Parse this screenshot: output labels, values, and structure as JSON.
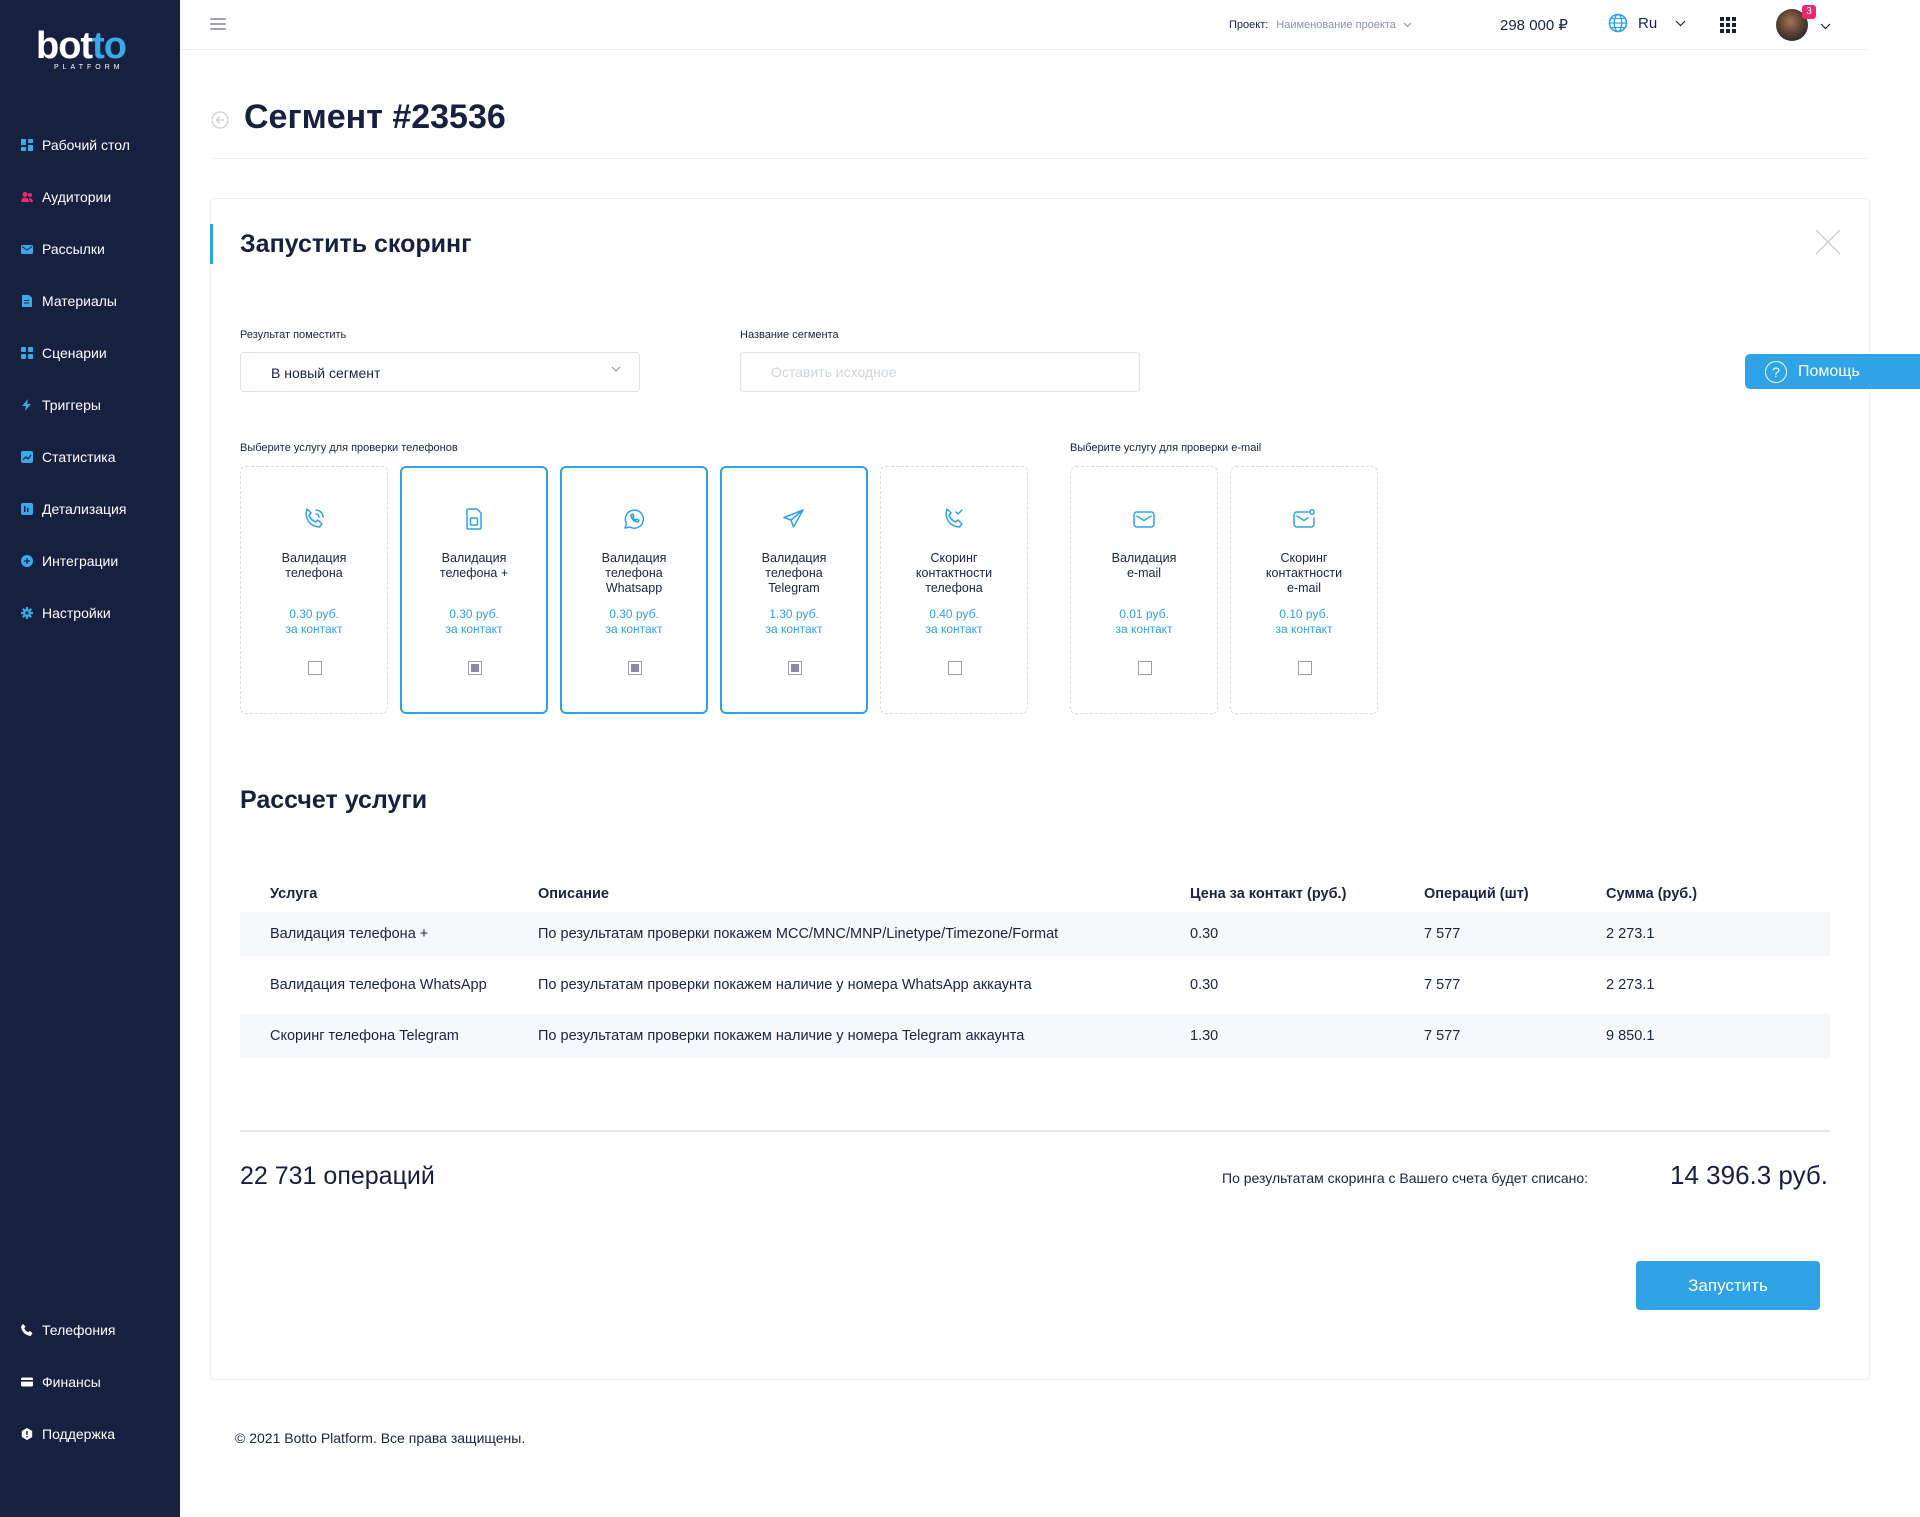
{
  "brand": {
    "logo_main": "bot",
    "logo_accent": "to",
    "logo_sub": "PLATFORM"
  },
  "sidebar": {
    "items": [
      {
        "label": "Рабочий стол",
        "icon": "dashboard-icon",
        "color": "#3ba8e8"
      },
      {
        "label": "Аудитории",
        "icon": "users-icon",
        "color": "#e8296f"
      },
      {
        "label": "Рассылки",
        "icon": "mail-icon",
        "color": "#3ba8e8"
      },
      {
        "label": "Материалы",
        "icon": "file-icon",
        "color": "#3ba8e8"
      },
      {
        "label": "Сценарии",
        "icon": "scenario-icon",
        "color": "#3ba8e8"
      },
      {
        "label": "Триггеры",
        "icon": "bolt-icon",
        "color": "#3ba8e8"
      },
      {
        "label": "Статистика",
        "icon": "chart-icon",
        "color": "#3ba8e8"
      },
      {
        "label": "Детализация",
        "icon": "detail-icon",
        "color": "#3ba8e8"
      },
      {
        "label": "Интеграции",
        "icon": "integration-icon",
        "color": "#3ba8e8"
      },
      {
        "label": "Настройки",
        "icon": "gear-icon",
        "color": "#3ba8e8"
      }
    ],
    "bottom_items": [
      {
        "label": "Телефония",
        "icon": "phone-icon",
        "color": "#ffffff"
      },
      {
        "label": "Финансы",
        "icon": "card-icon",
        "color": "#ffffff"
      },
      {
        "label": "Поддержка",
        "icon": "support-icon",
        "color": "#ffffff"
      }
    ]
  },
  "header": {
    "project_label": "Проект:",
    "project_value": "Наименование проекта",
    "balance": "298 000 ₽",
    "language": "Ru",
    "notifications": "3"
  },
  "page": {
    "title": "Сегмент #23536"
  },
  "form": {
    "title": "Запустить скоринг",
    "result_label": "Результат поместить",
    "result_value": "В новый сегмент",
    "segment_name_label": "Название сегмента",
    "segment_name_placeholder": "Оставить исходное",
    "segment_name_value": "",
    "phone_services_label": "Выберите услугу для проверки телефонов",
    "email_services_label": "Выберите услугу для проверки e-mail"
  },
  "help": {
    "label": "Помощь"
  },
  "services": [
    {
      "name": [
        "Валидация",
        "телефона"
      ],
      "price": "0.30 руб.",
      "unit": "за контакт",
      "checked": false,
      "icon": "phone-call-icon"
    },
    {
      "name": [
        "Валидация",
        "телефона +"
      ],
      "price": "0.30 руб.",
      "unit": "за контакт",
      "checked": true,
      "icon": "sim-card-icon"
    },
    {
      "name": [
        "Валидация",
        "телефона",
        "Whatsapp"
      ],
      "price": "0.30 руб.",
      "unit": "за контакт",
      "checked": true,
      "icon": "whatsapp-icon"
    },
    {
      "name": [
        "Валидация",
        "телефона",
        "Telegram"
      ],
      "price": "1.30 руб.",
      "unit": "за контакт",
      "checked": true,
      "icon": "telegram-icon"
    },
    {
      "name": [
        "Скоринг",
        "контактности",
        "телефона"
      ],
      "price": "0.40 руб.",
      "unit": "за контакт",
      "checked": false,
      "icon": "phone-check-icon"
    },
    {
      "name": [
        "Валидация",
        "e-mail"
      ],
      "price": "0.01 руб.",
      "unit": "за контакт",
      "checked": false,
      "icon": "envelope-icon"
    },
    {
      "name": [
        "Скоринг",
        "контактности",
        "e-mail"
      ],
      "price": "0.10 руб.",
      "unit": "за контакт",
      "checked": false,
      "icon": "envelope-dot-icon"
    }
  ],
  "calc": {
    "title": "Рассчет услуги",
    "columns": [
      "Услуга",
      "Описание",
      "Цена за контакт (руб.)",
      "Операций  (шт)",
      "Сумма (руб.)"
    ],
    "rows": [
      [
        "Валидация телефона +",
        "По результатам проверки покажем MCC/MNC/MNP/Linetype/Timezone/Format",
        "0.30",
        "7 577",
        "2 273.1"
      ],
      [
        "Валидация телефона WhatsApp",
        "По результатам проверки покажем наличие у номера WhatsApp аккаунта",
        "0.30",
        "7 577",
        "2 273.1"
      ],
      [
        "Скоринг телефона Telegram",
        "По результатам проверки покажем наличие у номера Telegram аккаунта",
        "1.30",
        "7 577",
        "9 850.1"
      ]
    ],
    "total_ops": "22 731 операций",
    "charge_label": "По результатам скоринга с Вашего счета будет списано:",
    "charge_value": "14 396.3 руб."
  },
  "actions": {
    "run_label": "Запустить"
  },
  "footer": {
    "text": "© 2021 Botto Platform. Все права защищены."
  },
  "colors": {
    "sidebar_bg": "#16203f",
    "accent": "#2fa3e6",
    "badge": "#e8296f"
  }
}
